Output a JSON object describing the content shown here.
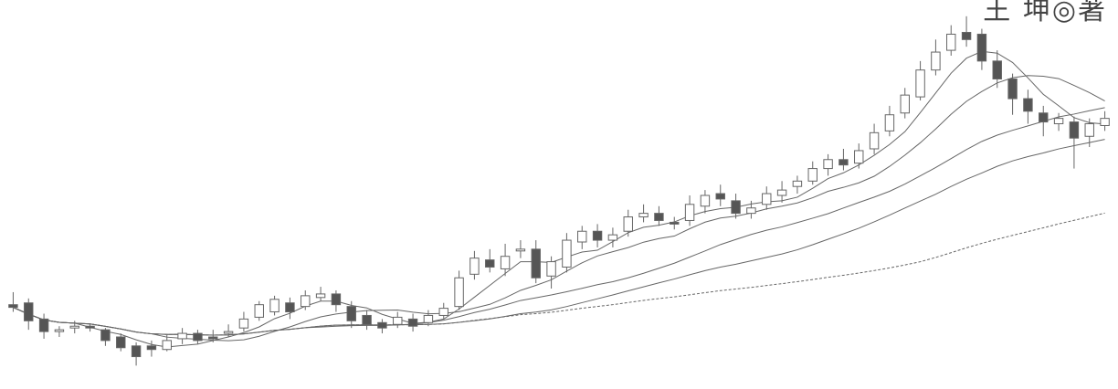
{
  "header": {
    "author_text": "王 坤◎著"
  },
  "chart_data": {
    "type": "candlestick",
    "title": "",
    "xlabel": "",
    "ylabel": "",
    "ylim": [
      0,
      420
    ],
    "grid": false,
    "legend": "none",
    "colors": {
      "body_fill": "#555555",
      "hollow_fill": "#ffffff",
      "line": "#666666",
      "axis_none": "#ffffff"
    },
    "candles": [
      [
        0,
        88,
        85,
        102,
        80
      ],
      [
        0,
        90,
        70,
        95,
        60
      ],
      [
        0,
        72,
        58,
        78,
        50
      ],
      [
        0,
        58,
        60,
        64,
        52
      ],
      [
        1,
        62,
        64,
        70,
        56
      ],
      [
        1,
        64,
        62,
        66,
        58
      ],
      [
        1,
        60,
        48,
        62,
        42
      ],
      [
        1,
        52,
        40,
        56,
        36
      ],
      [
        2,
        42,
        30,
        46,
        20
      ],
      [
        2,
        42,
        38,
        48,
        30
      ],
      [
        2,
        38,
        48,
        54,
        36
      ],
      [
        2,
        50,
        56,
        62,
        44
      ],
      [
        3,
        56,
        48,
        60,
        44
      ],
      [
        3,
        52,
        50,
        60,
        46
      ],
      [
        3,
        56,
        58,
        66,
        52
      ],
      [
        3,
        62,
        72,
        80,
        58
      ],
      [
        4,
        74,
        88,
        92,
        70
      ],
      [
        4,
        80,
        94,
        98,
        76
      ],
      [
        4,
        90,
        80,
        96,
        72
      ],
      [
        4,
        86,
        98,
        104,
        82
      ],
      [
        5,
        96,
        100,
        108,
        92
      ],
      [
        5,
        100,
        88,
        104,
        80
      ],
      [
        5,
        86,
        70,
        92,
        62
      ],
      [
        5,
        76,
        66,
        82,
        60
      ],
      [
        6,
        68,
        62,
        72,
        56
      ],
      [
        6,
        66,
        74,
        80,
        62
      ],
      [
        6,
        72,
        64,
        78,
        58
      ],
      [
        6,
        68,
        76,
        82,
        64
      ],
      [
        7,
        76,
        84,
        90,
        72
      ],
      [
        7,
        86,
        118,
        126,
        82
      ],
      [
        7,
        122,
        140,
        148,
        116
      ],
      [
        7,
        138,
        130,
        150,
        124
      ],
      [
        8,
        128,
        142,
        156,
        120
      ],
      [
        8,
        148,
        150,
        160,
        140
      ],
      [
        8,
        150,
        118,
        160,
        112
      ],
      [
        8,
        120,
        136,
        142,
        106
      ],
      [
        9,
        130,
        160,
        168,
        124
      ],
      [
        9,
        158,
        170,
        176,
        150
      ],
      [
        9,
        170,
        160,
        178,
        152
      ],
      [
        9,
        160,
        166,
        174,
        152
      ],
      [
        10,
        170,
        186,
        194,
        164
      ],
      [
        10,
        186,
        190,
        200,
        180
      ],
      [
        10,
        190,
        182,
        198,
        176
      ],
      [
        10,
        180,
        178,
        186,
        172
      ],
      [
        11,
        182,
        200,
        210,
        176
      ],
      [
        11,
        198,
        210,
        216,
        190
      ],
      [
        11,
        212,
        206,
        222,
        198
      ],
      [
        11,
        204,
        190,
        212,
        184
      ],
      [
        12,
        190,
        196,
        204,
        184
      ],
      [
        12,
        200,
        212,
        220,
        194
      ],
      [
        12,
        210,
        216,
        226,
        202
      ],
      [
        12,
        220,
        226,
        232,
        212
      ],
      [
        13,
        226,
        240,
        248,
        222
      ],
      [
        13,
        240,
        250,
        256,
        232
      ],
      [
        13,
        250,
        244,
        262,
        238
      ],
      [
        13,
        246,
        260,
        268,
        240
      ],
      [
        14,
        262,
        280,
        290,
        256
      ],
      [
        14,
        282,
        300,
        310,
        276
      ],
      [
        14,
        302,
        322,
        330,
        296
      ],
      [
        14,
        320,
        350,
        360,
        316
      ],
      [
        15,
        350,
        370,
        384,
        344
      ],
      [
        15,
        372,
        390,
        400,
        366
      ],
      [
        15,
        392,
        384,
        410,
        376
      ],
      [
        15,
        390,
        360,
        396,
        350
      ],
      [
        16,
        360,
        340,
        372,
        330
      ],
      [
        16,
        340,
        318,
        346,
        300
      ],
      [
        16,
        318,
        304,
        328,
        290
      ],
      [
        16,
        302,
        292,
        310,
        276
      ],
      [
        17,
        290,
        296,
        302,
        282
      ],
      [
        17,
        292,
        274,
        298,
        240
      ],
      [
        17,
        276,
        290,
        296,
        264
      ],
      [
        17,
        288,
        296,
        304,
        282
      ]
    ],
    "ma_lines": [
      {
        "period": "ma5"
      },
      {
        "period": "ma10"
      },
      {
        "period": "ma20"
      },
      {
        "period": "ma30"
      },
      {
        "period": "ma60"
      }
    ]
  }
}
